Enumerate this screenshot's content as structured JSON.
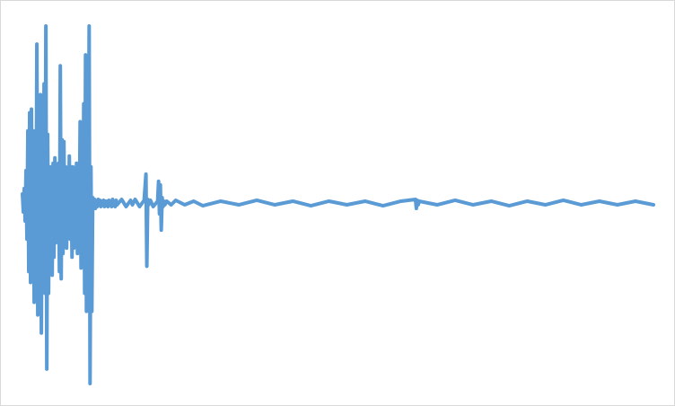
{
  "chart_data": {
    "type": "line",
    "title": "",
    "xlabel": "",
    "ylabel": "",
    "grid": false,
    "legend": "none",
    "xlim": [
      0,
      700
    ],
    "ylim": [
      -1.0,
      1.0
    ],
    "series": [
      {
        "color": "#5b9bd5",
        "x": [
          0,
          1,
          2,
          3,
          4,
          5,
          6,
          7,
          8,
          9,
          10,
          11,
          12,
          13,
          14,
          15,
          16,
          17,
          18,
          19,
          20,
          21,
          22,
          23,
          24,
          25,
          26,
          27,
          28,
          29,
          30,
          31,
          32,
          33,
          34,
          35,
          36,
          37,
          38,
          39,
          40,
          41,
          42,
          43,
          44,
          45,
          46,
          47,
          48,
          49,
          50,
          51,
          52,
          53,
          54,
          55,
          56,
          57,
          58,
          59,
          60,
          61,
          62,
          63,
          64,
          65,
          66,
          67,
          68,
          69,
          70,
          71,
          72,
          73,
          74,
          75,
          76,
          77,
          78,
          79,
          80,
          81,
          82,
          83,
          84,
          85,
          86,
          87,
          88,
          89,
          90,
          91,
          92,
          93,
          94,
          95,
          96,
          97,
          98,
          99,
          100,
          101,
          102,
          103,
          104,
          105,
          110,
          115,
          120,
          122,
          125,
          130,
          135,
          137,
          138,
          139,
          140,
          142,
          145,
          150,
          151,
          152,
          153,
          154,
          155,
          156,
          157,
          158,
          160,
          165,
          170,
          180,
          190,
          200,
          220,
          240,
          260,
          280,
          300,
          320,
          340,
          360,
          380,
          400,
          420,
          436,
          437,
          438,
          439,
          440,
          460,
          480,
          500,
          520,
          540,
          560,
          580,
          600,
          620,
          640,
          660,
          680,
          700
        ],
        "values": [
          0.05,
          -0.05,
          0.08,
          -0.1,
          0.18,
          -0.2,
          0.4,
          -0.38,
          0.5,
          -0.44,
          0.52,
          -0.4,
          0.4,
          -0.55,
          0.2,
          -0.35,
          0.88,
          -0.62,
          0.3,
          -0.2,
          0.6,
          -0.72,
          0.45,
          -0.3,
          0.66,
          -0.5,
          0.98,
          -0.92,
          0.38,
          -0.5,
          0.2,
          -0.38,
          0.2,
          -0.4,
          0.22,
          -0.3,
          0.25,
          -0.22,
          0.15,
          -0.2,
          0.22,
          -0.38,
          0.76,
          -0.42,
          0.35,
          -0.28,
          0.34,
          -0.2,
          0.2,
          -0.25,
          0.14,
          -0.18,
          0.26,
          -0.2,
          0.2,
          -0.3,
          0.2,
          -0.25,
          0.16,
          -0.2,
          0.22,
          -0.28,
          0.1,
          -0.2,
          0.45,
          -0.36,
          0.12,
          -0.2,
          0.55,
          -0.5,
          0.82,
          -0.6,
          0.4,
          -0.3,
          0.98,
          -1.0,
          0.2,
          -0.6,
          0.03,
          -0.02,
          0.02,
          -0.03,
          0.01,
          -0.02,
          0.02,
          -0.01,
          0.015,
          -0.02,
          0.01,
          -0.01,
          0.015,
          -0.02,
          0.01,
          -0.015,
          0.01,
          -0.02,
          0.015,
          -0.01,
          0.01,
          -0.02,
          0.02,
          -0.015,
          0.01,
          -0.02,
          0.015,
          -0.01,
          0.02,
          -0.02,
          0.015,
          -0.01,
          0.02,
          -0.02,
          0.015,
          0.16,
          -0.35,
          0.02,
          -0.01,
          0.015,
          -0.02,
          0.01,
          0.12,
          -0.06,
          0.1,
          -0.15,
          0.03,
          -0.02,
          0.01,
          -0.01,
          0.01,
          -0.01,
          0.015,
          -0.01,
          0.01,
          -0.015,
          0.01,
          -0.01,
          0.015,
          -0.01,
          0.01,
          -0.015,
          0.01,
          -0.01,
          0.01,
          -0.015,
          0.01,
          0.02,
          -0.03,
          0.015,
          -0.01,
          0.01,
          -0.01,
          0.015,
          -0.01,
          0.01,
          -0.015,
          0.01,
          -0.01,
          0.015,
          -0.01,
          0.01,
          -0.01,
          0.01,
          -0.01
        ]
      }
    ]
  }
}
